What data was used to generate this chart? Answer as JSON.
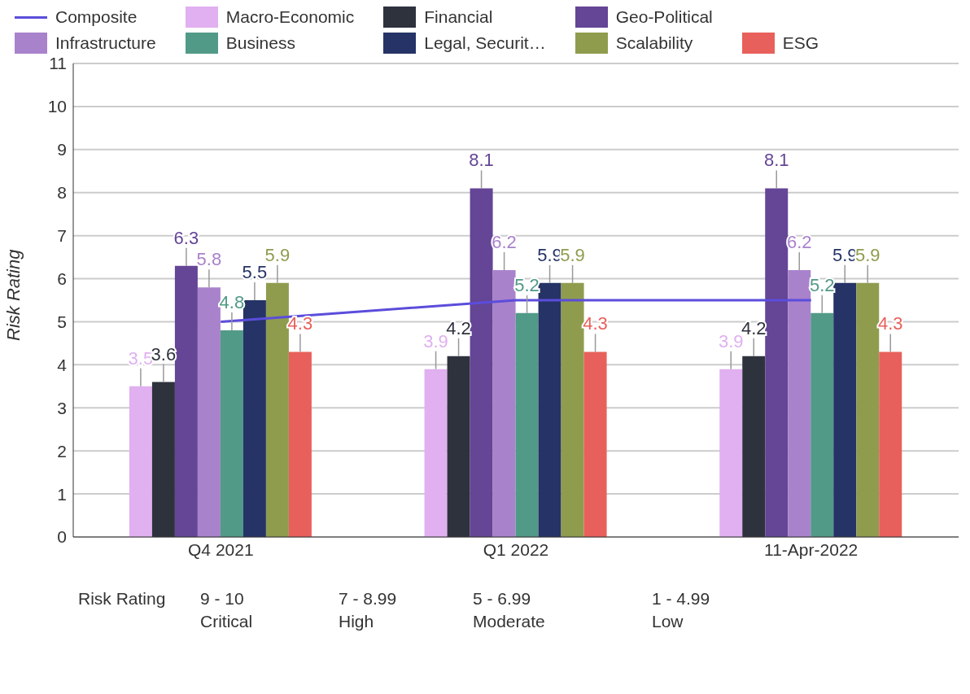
{
  "chart_data": {
    "type": "bar",
    "ylabel": "Risk Rating",
    "categories": [
      "Q4 2021",
      "Q1 2022",
      "11-Apr-2022"
    ],
    "series": [
      {
        "name": "Composite",
        "type": "line",
        "color": "#5b4ddb",
        "values": [
          5.0,
          5.5,
          5.5
        ]
      },
      {
        "name": "Macro-Economic",
        "color": "#e0b0f0",
        "values": [
          3.5,
          3.9,
          3.9
        ],
        "value_labels": [
          "3.5",
          "3.9",
          "3.9"
        ]
      },
      {
        "name": "Financial",
        "color": "#2e323d",
        "values": [
          3.6,
          4.2,
          4.2
        ],
        "value_labels": [
          "3.6",
          "4.2",
          "4.2"
        ]
      },
      {
        "name": "Geo-Political",
        "color": "#644596",
        "values": [
          6.3,
          8.1,
          8.1
        ],
        "value_labels": [
          "6.3",
          "8.1",
          "8.1"
        ]
      },
      {
        "name": "Infrastructure",
        "color": "#a982cc",
        "values": [
          5.8,
          6.2,
          6.2
        ],
        "value_labels": [
          "5.8",
          "6.2",
          "6.2"
        ]
      },
      {
        "name": "Business",
        "color": "#519a87",
        "values": [
          4.8,
          5.2,
          5.2
        ],
        "value_labels": [
          "4.8",
          "5.2",
          "5.2"
        ]
      },
      {
        "name": "Legal, Securit…",
        "color": "#253366",
        "values": [
          5.5,
          5.9,
          5.9
        ],
        "value_labels": [
          "5.5",
          "5.9",
          "5.9"
        ]
      },
      {
        "name": "Scalability",
        "color": "#8f9c4e",
        "values": [
          5.9,
          5.9,
          5.9
        ],
        "value_labels": [
          "5.9",
          "5.9",
          "5.9"
        ]
      },
      {
        "name": "ESG",
        "color": "#e8605b",
        "values": [
          4.3,
          4.3,
          4.3
        ],
        "value_labels": [
          "4.3",
          "4.3",
          "4.3"
        ]
      }
    ],
    "ylim": [
      0,
      11
    ],
    "yticks": [
      0,
      1,
      2,
      3,
      4,
      5,
      6,
      7,
      8,
      9,
      10,
      11
    ],
    "grid": "y",
    "legend": "top",
    "marker": "none",
    "line_style": "solid",
    "annotations": [
      "Risk Rating",
      "9 - 10",
      "Critical",
      "7 - 8.99",
      "High",
      "5 - 6.99",
      "Moderate",
      "1 - 4.99",
      "Low"
    ]
  }
}
